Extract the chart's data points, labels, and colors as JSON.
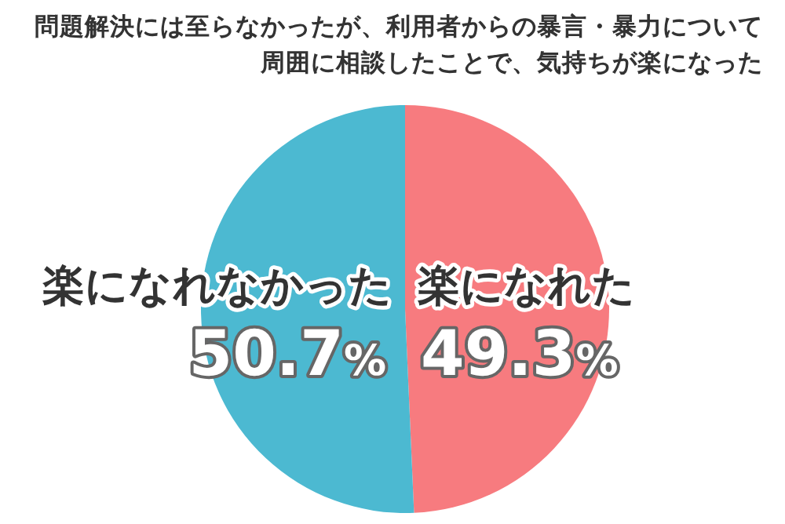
{
  "chart_data": {
    "type": "pie",
    "title": "問題解決には至らなかったが、利用者からの暴言・暴力について周囲に相談したことで、気持ちが楽になった",
    "categories": [
      "楽になれた",
      "楽になれなかった"
    ],
    "values": [
      49.3,
      50.7
    ],
    "colors": [
      "#f77b7f",
      "#4cb9d1"
    ],
    "value_labels": [
      "49.3%",
      "50.7%"
    ],
    "legend": false
  }
}
